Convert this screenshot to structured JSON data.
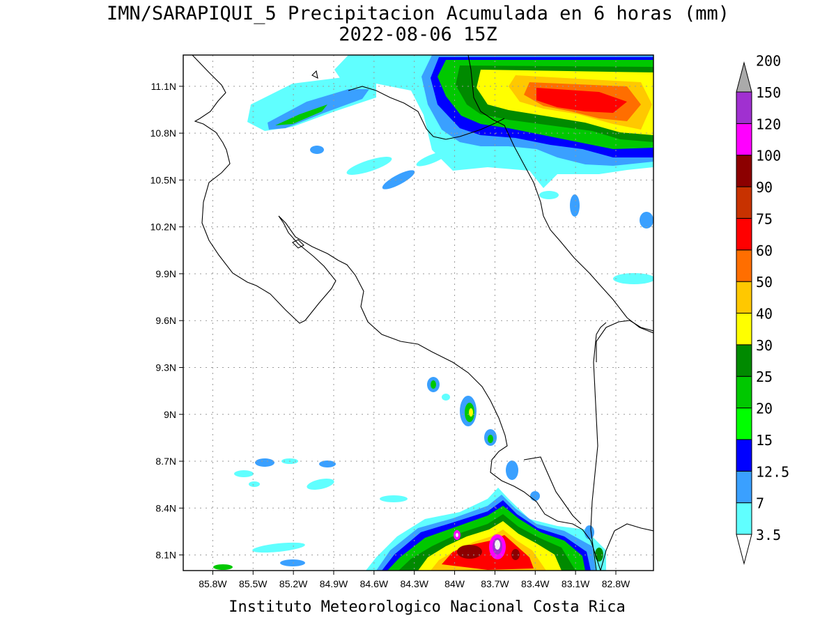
{
  "title": {
    "line1": "IMN/SARAPIQUI_5 Precipitacion Acumulada en 6 horas (mm)",
    "line2": "2022-08-06 15Z"
  },
  "footer": "Instituto Meteorologico Nacional Costa Rica",
  "map": {
    "lon_range": [
      -86.02,
      -82.52
    ],
    "lat_range": [
      8.0,
      11.3
    ],
    "grid": true,
    "lat_ticks": [
      {
        "value": 11.1,
        "label": "11.1N"
      },
      {
        "value": 10.8,
        "label": "10.8N"
      },
      {
        "value": 10.5,
        "label": "10.5N"
      },
      {
        "value": 10.2,
        "label": "10.2N"
      },
      {
        "value": 9.9,
        "label": "9.9N"
      },
      {
        "value": 9.6,
        "label": "9.6N"
      },
      {
        "value": 9.3,
        "label": "9.3N"
      },
      {
        "value": 9.0,
        "label": "9N"
      },
      {
        "value": 8.7,
        "label": "8.7N"
      },
      {
        "value": 8.4,
        "label": "8.4N"
      },
      {
        "value": 8.1,
        "label": "8.1N"
      }
    ],
    "lon_ticks": [
      {
        "value": -85.8,
        "label": "85.8W"
      },
      {
        "value": -85.5,
        "label": "85.5W"
      },
      {
        "value": -85.2,
        "label": "85.2W"
      },
      {
        "value": -84.9,
        "label": "84.9W"
      },
      {
        "value": -84.6,
        "label": "84.6W"
      },
      {
        "value": -84.3,
        "label": "84.3W"
      },
      {
        "value": -84.0,
        "label": "84W"
      },
      {
        "value": -83.7,
        "label": "83.7W"
      },
      {
        "value": -83.4,
        "label": "83.4W"
      },
      {
        "value": -83.1,
        "label": "83.1W"
      },
      {
        "value": -82.8,
        "label": "82.8W"
      }
    ]
  },
  "legend": {
    "labels": [
      "3.5",
      "7",
      "12.5",
      "15",
      "20",
      "25",
      "30",
      "40",
      "50",
      "60",
      "75",
      "90",
      "100",
      "120",
      "150",
      "200"
    ],
    "colors": [
      "#60ffff",
      "#3aa0ff",
      "#0000ff",
      "#00ff00",
      "#00c800",
      "#008a00",
      "#ffff00",
      "#ffc800",
      "#ff6e00",
      "#ff0000",
      "#c83200",
      "#8c0000",
      "#ff00ff",
      "#a030d0",
      "#f2f2f2",
      "#aaaaaa"
    ]
  }
}
